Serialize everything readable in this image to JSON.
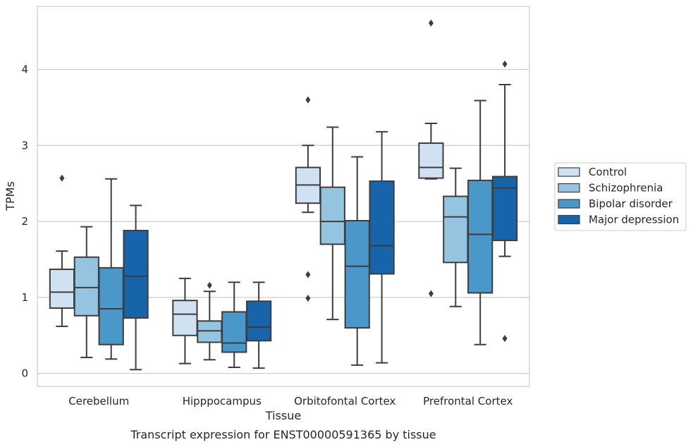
{
  "chart_data": {
    "type": "box",
    "caption": "Transcript expression for ENST00000591365 by tissue",
    "xlabel": "Tissue",
    "ylabel": "TPMs",
    "ylim": [
      -0.17,
      4.83
    ],
    "yticks": [
      0,
      1,
      2,
      3,
      4
    ],
    "grid": "horizontal",
    "legend_position": "right",
    "categories": [
      "Cerebellum",
      "Hipppocampus",
      "Orbitofontal Cortex",
      "Prefrontal Cortex"
    ],
    "series": [
      {
        "name": "Control",
        "color": "#d0e1f2",
        "boxes": [
          {
            "whislo": 0.62,
            "q1": 0.86,
            "med": 1.07,
            "q3": 1.37,
            "whishi": 1.61,
            "fliers": [
              2.57
            ]
          },
          {
            "whislo": 0.13,
            "q1": 0.5,
            "med": 0.78,
            "q3": 0.96,
            "whishi": 1.25,
            "fliers": []
          },
          {
            "whislo": 2.12,
            "q1": 2.24,
            "med": 2.48,
            "q3": 2.71,
            "whishi": 3.0,
            "fliers": [
              3.6,
              1.3,
              0.99
            ]
          },
          {
            "whislo": 2.56,
            "q1": 2.57,
            "med": 2.71,
            "q3": 3.03,
            "whishi": 3.29,
            "fliers": [
              4.61,
              1.05
            ]
          }
        ]
      },
      {
        "name": "Schizophrenia",
        "color": "#94c4df",
        "boxes": [
          {
            "whislo": 0.21,
            "q1": 0.76,
            "med": 1.13,
            "q3": 1.53,
            "whishi": 1.93,
            "fliers": []
          },
          {
            "whislo": 0.18,
            "q1": 0.41,
            "med": 0.56,
            "q3": 0.69,
            "whishi": 1.08,
            "fliers": [
              1.16
            ]
          },
          {
            "whislo": 0.71,
            "q1": 1.7,
            "med": 2.0,
            "q3": 2.45,
            "whishi": 3.24,
            "fliers": []
          },
          {
            "whislo": 0.88,
            "q1": 1.46,
            "med": 2.06,
            "q3": 2.33,
            "whishi": 2.7,
            "fliers": []
          }
        ]
      },
      {
        "name": "Bipolar disorder",
        "color": "#4a98c9",
        "boxes": [
          {
            "whislo": 0.19,
            "q1": 0.38,
            "med": 0.85,
            "q3": 1.39,
            "whishi": 2.56,
            "fliers": []
          },
          {
            "whislo": 0.08,
            "q1": 0.28,
            "med": 0.4,
            "q3": 0.81,
            "whishi": 1.2,
            "fliers": []
          },
          {
            "whislo": 0.11,
            "q1": 0.6,
            "med": 1.41,
            "q3": 2.01,
            "whishi": 2.85,
            "fliers": []
          },
          {
            "whislo": 0.38,
            "q1": 1.06,
            "med": 1.83,
            "q3": 2.54,
            "whishi": 3.59,
            "fliers": []
          }
        ]
      },
      {
        "name": "Major depression",
        "color": "#1764ab",
        "boxes": [
          {
            "whislo": 0.05,
            "q1": 0.73,
            "med": 1.28,
            "q3": 1.88,
            "whishi": 2.21,
            "fliers": []
          },
          {
            "whislo": 0.07,
            "q1": 0.43,
            "med": 0.61,
            "q3": 0.95,
            "whishi": 1.2,
            "fliers": []
          },
          {
            "whislo": 0.14,
            "q1": 1.31,
            "med": 1.68,
            "q3": 2.53,
            "whishi": 3.18,
            "fliers": []
          },
          {
            "whislo": 1.54,
            "q1": 1.75,
            "med": 2.44,
            "q3": 2.59,
            "whishi": 3.8,
            "fliers": [
              4.07,
              0.46
            ]
          }
        ]
      }
    ]
  },
  "colors": {
    "edge": "#3d3d3d",
    "grid": "#cccccc",
    "frame": "#cccccc",
    "text": "#262626"
  }
}
